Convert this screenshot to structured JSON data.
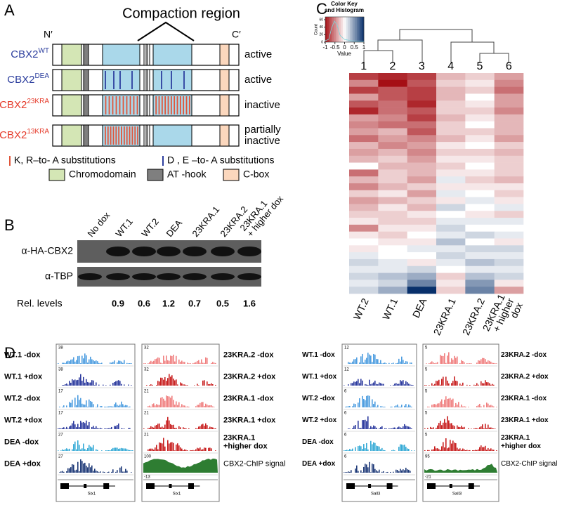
{
  "panel_a": {
    "label": "A",
    "title": "Compaction region",
    "n_term": "N′",
    "c_term": "C′",
    "constructs": [
      {
        "name": "CBX2",
        "variant": "WT",
        "status": [
          "active"
        ]
      },
      {
        "name": "CBX2",
        "variant": "DEA",
        "status": [
          "active"
        ]
      },
      {
        "name": "CBX2",
        "variant": "23KRA",
        "status": [
          "inactive"
        ]
      },
      {
        "name": "CBX2",
        "variant": "13KRA",
        "status": [
          "partially",
          "inactive"
        ]
      }
    ],
    "legend": {
      "kr": "K, R–to- A substitutions",
      "de": "D , E –to- A substitutions",
      "chromodomain": "Chromodomain",
      "at_hook": "AT -hook",
      "c_box": "C-box"
    }
  },
  "panel_b": {
    "label": "B",
    "lanes": [
      [
        "No dox"
      ],
      [
        "WT.1"
      ],
      [
        "WT.2"
      ],
      [
        "DEA"
      ],
      [
        "23KRA.1"
      ],
      [
        "23KRA.2"
      ],
      [
        "23KRA.1",
        "+ higher dox"
      ]
    ],
    "rows": [
      "α-HA-CBX2",
      "α-TBP"
    ],
    "rel_label": "Rel. levels",
    "rel_values": [
      0.9,
      0.6,
      1.2,
      0.7,
      0.5,
      1.6
    ]
  },
  "panel_c": {
    "label": "C",
    "key_title": [
      "Color Key",
      "and Histogram"
    ],
    "key_count_label": "Count",
    "key_value_label": "Value",
    "key_ticks": [
      -1,
      -0.5,
      0,
      0.5,
      1
    ],
    "count_ticks": [
      0,
      20,
      40,
      60
    ],
    "cluster_numbers": [
      1,
      2,
      3,
      4,
      5,
      6
    ],
    "columns": [
      [
        "WT.2"
      ],
      [
        "WT.1"
      ],
      [
        "DEA"
      ],
      [
        "23KRA.1"
      ],
      [
        "23KRA.2"
      ],
      [
        "23KRA.1",
        "+ higher",
        "dox"
      ]
    ],
    "heatmap": [
      [
        -0.8,
        -0.9,
        -0.8,
        -0.3,
        -0.2,
        -0.4
      ],
      [
        -0.5,
        -1.0,
        -0.7,
        -0.2,
        -0.1,
        -0.5
      ],
      [
        -0.8,
        -0.7,
        -0.8,
        -0.3,
        -0.2,
        -0.6
      ],
      [
        -0.4,
        -0.7,
        -0.8,
        -0.3,
        0,
        -0.4
      ],
      [
        -0.7,
        -0.6,
        -0.9,
        -0.2,
        -0.1,
        -0.4
      ],
      [
        -0.9,
        -0.6,
        -0.7,
        -0.2,
        -0.2,
        -0.5
      ],
      [
        -0.4,
        -0.5,
        -0.8,
        -0.3,
        -0.1,
        -0.3
      ],
      [
        -0.5,
        -0.6,
        -0.6,
        -0.2,
        0,
        -0.3
      ],
      [
        -0.4,
        -0.3,
        -0.7,
        -0.2,
        -0.2,
        -0.3
      ],
      [
        -0.6,
        -0.4,
        -0.5,
        -0.3,
        -0.1,
        -0.4
      ],
      [
        -0.3,
        -0.5,
        -0.4,
        -0.1,
        0,
        -0.2
      ],
      [
        -0.4,
        -0.3,
        -0.5,
        -0.2,
        -0.2,
        -0.3
      ],
      [
        -0.3,
        -0.2,
        -0.4,
        -0.1,
        -0.1,
        -0.2
      ],
      [
        0,
        -0.3,
        -0.3,
        -0.2,
        0,
        -0.2
      ],
      [
        -0.6,
        -0.2,
        -0.3,
        -0.1,
        -0.1,
        -0.2
      ],
      [
        -0.3,
        -0.2,
        -0.4,
        0.1,
        -0.2,
        -0.3
      ],
      [
        -0.5,
        -0.3,
        -0.2,
        -0.1,
        -0.1,
        -0.1
      ],
      [
        -0.2,
        -0.1,
        -0.4,
        0.1,
        0,
        -0.2
      ],
      [
        -0.4,
        -0.3,
        -0.2,
        -0.1,
        0.1,
        -0.1
      ],
      [
        -0.3,
        -0.1,
        -0.3,
        0.2,
        0,
        0.1
      ],
      [
        -0.2,
        -0.2,
        -0.1,
        0,
        -0.1,
        -0.2
      ],
      [
        -0.1,
        -0.2,
        -0.2,
        0.1,
        0.1,
        0.1
      ],
      [
        -0.5,
        -0.1,
        -0.1,
        0.2,
        0,
        0
      ],
      [
        -0.1,
        -0.2,
        0,
        0.1,
        0.2,
        0.1
      ],
      [
        0,
        -0.1,
        -0.1,
        0.3,
        0,
        -0.1
      ],
      [
        -0.1,
        0,
        0.1,
        0.1,
        0.2,
        0.2
      ],
      [
        0.1,
        0,
        0,
        0.2,
        0.1,
        0.1
      ],
      [
        0.2,
        0.1,
        -0.1,
        0.1,
        0.3,
        0.2
      ],
      [
        0.1,
        0.1,
        0.2,
        0,
        0.1,
        0.1
      ],
      [
        0.2,
        0.3,
        0.4,
        -0.2,
        0.3,
        0.2
      ],
      [
        0.1,
        0.2,
        0.6,
        -0.1,
        0.5,
        -0.1
      ],
      [
        0.2,
        0.4,
        1.0,
        -0.2,
        0.6,
        -0.4
      ]
    ]
  },
  "panel_d": {
    "label": "D",
    "groups": [
      {
        "gene": "Six1",
        "left_rows": [
          {
            "label": [
              "WT.1 -dox"
            ],
            "scale": 38
          },
          {
            "label": [
              "WT.1 +dox"
            ],
            "scale": 38
          },
          {
            "label": [
              "WT.2 -dox"
            ],
            "scale": 17
          },
          {
            "label": [
              "WT.2 +dox"
            ],
            "scale": 17
          },
          {
            "label": [
              "DEA -dox"
            ],
            "scale": 27
          },
          {
            "label": [
              "DEA +dox"
            ],
            "scale": 27
          }
        ],
        "right_rows": [
          {
            "label": [
              "23KRA.2 -dox"
            ],
            "scale": 32
          },
          {
            "label": [
              "23KRA.2 +dox"
            ],
            "scale": 32
          },
          {
            "label": [
              "23KRA.1 -dox"
            ],
            "scale": 21
          },
          {
            "label": [
              "23KRA.1 +dox"
            ],
            "scale": 21
          },
          {
            "label": [
              "23KRA.1",
              "+higher dox"
            ],
            "scale": 21
          },
          {
            "label": [
              "CBX2-ChIP signal"
            ],
            "scale": 100
          }
        ],
        "chip_min": -13
      },
      {
        "gene": "Sall3",
        "left_rows": [
          {
            "label": [
              "WT.1 -dox"
            ],
            "scale": 12
          },
          {
            "label": [
              "WT.1 +dox"
            ],
            "scale": 12
          },
          {
            "label": [
              "WT.2 -dox"
            ],
            "scale": 6
          },
          {
            "label": [
              "WT.2 +dox"
            ],
            "scale": 6
          },
          {
            "label": [
              "DEA -dox"
            ],
            "scale": 6
          },
          {
            "label": [
              "DEA +dox"
            ],
            "scale": 6
          }
        ],
        "right_rows": [
          {
            "label": [
              "23KRA.2 -dox"
            ],
            "scale": 5
          },
          {
            "label": [
              "23KRA.2 +dox"
            ],
            "scale": 5
          },
          {
            "label": [
              "23KRA.1 -dox"
            ],
            "scale": 5
          },
          {
            "label": [
              "23KRA.1 +dox"
            ],
            "scale": 5
          },
          {
            "label": [
              "23KRA.1",
              "+higher dox"
            ],
            "scale": 5
          },
          {
            "label": [
              "CBX2-ChIP signal"
            ],
            "scale": 95
          }
        ],
        "chip_min": -21
      }
    ]
  }
}
